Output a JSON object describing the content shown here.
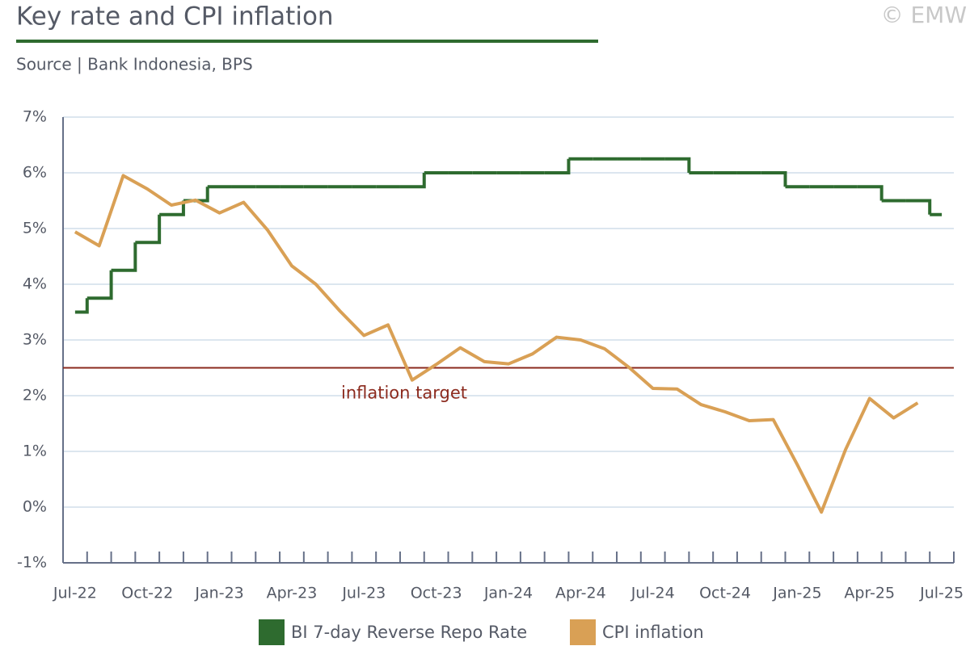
{
  "chart_data": {
    "type": "line",
    "title": "Key rate and CPI inflation",
    "subtitle": "Source | Bank Indonesia, BPS",
    "copyright": "© EMW",
    "categories": [
      "Jul-22",
      null,
      null,
      "Oct-22",
      null,
      null,
      "Jan-23",
      null,
      null,
      "Apr-23",
      null,
      null,
      "Jul-23",
      null,
      null,
      "Oct-23",
      null,
      null,
      "Jan-24",
      null,
      null,
      "Apr-24",
      null,
      null,
      "Jul-24",
      null,
      null,
      "Oct-24",
      null,
      null,
      "Jan-25",
      null,
      null,
      "Apr-25",
      null,
      null,
      "Jul-25"
    ],
    "series": [
      {
        "name": "BI 7-day Reverse Repo Rate",
        "color": "#2e6b2f",
        "step": true,
        "values": [
          3.5,
          3.75,
          4.25,
          4.75,
          5.25,
          5.5,
          5.75,
          5.75,
          5.75,
          5.75,
          5.75,
          5.75,
          5.75,
          5.75,
          5.75,
          6.0,
          6.0,
          6.0,
          6.0,
          6.0,
          6.0,
          6.25,
          6.25,
          6.25,
          6.25,
          6.25,
          6.0,
          6.0,
          6.0,
          6.0,
          5.75,
          5.75,
          5.75,
          5.75,
          5.5,
          5.5,
          5.25
        ]
      },
      {
        "name": "CPI inflation",
        "color": "#d9a055",
        "values": [
          4.94,
          4.69,
          5.95,
          5.71,
          5.42,
          5.51,
          5.28,
          5.47,
          4.97,
          4.33,
          4.0,
          3.52,
          3.08,
          3.27,
          2.28,
          2.56,
          2.86,
          2.61,
          2.57,
          2.75,
          3.05,
          3.0,
          2.84,
          2.51,
          2.13,
          2.12,
          1.84,
          1.71,
          1.55,
          1.57,
          0.76,
          -0.09,
          1.03,
          1.95,
          1.6,
          1.87,
          null
        ]
      }
    ],
    "reference_line": {
      "value": 2.5,
      "label": "inflation target",
      "color": "#8b2a1e"
    },
    "ylim": [
      -1,
      7
    ],
    "yticks": [
      {
        "value": -1,
        "label": "-1%"
      },
      {
        "value": 0,
        "label": "0%"
      },
      {
        "value": 1,
        "label": "1%"
      },
      {
        "value": 2,
        "label": "2%"
      },
      {
        "value": 3,
        "label": "3%"
      },
      {
        "value": 4,
        "label": "4%"
      },
      {
        "value": 5,
        "label": "5%"
      },
      {
        "value": 6,
        "label": "6%"
      },
      {
        "value": 7,
        "label": "7%"
      }
    ],
    "grid": true,
    "legend": "bottom"
  }
}
